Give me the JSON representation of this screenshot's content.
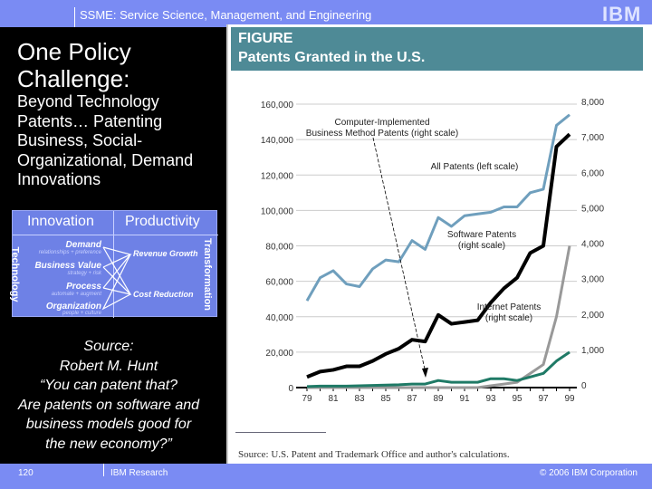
{
  "header": {
    "title": "SSME: Service Science, Management, and Engineering",
    "logo": "IBM"
  },
  "left": {
    "title": "One Policy Challenge:",
    "subtitle": "Beyond Technology Patents… Patenting Business, Social-Organizational, Demand Innovations",
    "diagram": {
      "col1": "Innovation",
      "col2": "Productivity",
      "side_left": "Technology",
      "side_right": "Transformation",
      "items": [
        {
          "label": "Demand",
          "sub": "relationships + preference"
        },
        {
          "label": "Business Value",
          "sub": "strategy + risk"
        },
        {
          "label": "Process",
          "sub": "automate + augment"
        },
        {
          "label": "Organization",
          "sub": "people + culture"
        }
      ],
      "outcomes": [
        "Revenue Growth",
        "Cost Reduction"
      ]
    },
    "source": [
      "Source:",
      "Robert M. Hunt",
      "“You can patent that?",
      "Are patents on software and",
      "business models good for",
      "the new economy?”"
    ]
  },
  "figure": {
    "label": "FIGURE",
    "title": "Patents Granted in the U.S.",
    "source": "Source: U.S. Patent and Trademark Office and author's calculations."
  },
  "chart_data": {
    "type": "line",
    "title": "Patents Granted in the U.S.",
    "x": [
      "79",
      "80",
      "81",
      "82",
      "83",
      "84",
      "85",
      "86",
      "87",
      "88",
      "89",
      "90",
      "91",
      "92",
      "93",
      "94",
      "95",
      "96",
      "97",
      "98",
      "99"
    ],
    "xticklabels": [
      "79",
      "81",
      "83",
      "85",
      "87",
      "89",
      "91",
      "93",
      "95",
      "97",
      "99"
    ],
    "left_axis": {
      "ylim": [
        0,
        160000
      ],
      "ticks": [
        "0",
        "20,000",
        "40,000",
        "60,000",
        "80,000",
        "100,000",
        "120,000",
        "140,000",
        "160,000"
      ]
    },
    "right_axis": {
      "ylim": [
        0,
        8000
      ],
      "ticks": [
        "0",
        "1,000",
        "2,000",
        "3,000",
        "4,000",
        "5,000",
        "6,000",
        "7,000",
        "8,000"
      ]
    },
    "grid": true,
    "series": [
      {
        "name": "All Patents (left scale)",
        "axis": "left",
        "color": "#6f9fbd",
        "values": [
          49000,
          62000,
          66000,
          58500,
          57000,
          67000,
          72000,
          71000,
          83000,
          78000,
          96000,
          91000,
          97000,
          98000,
          99000,
          102000,
          102000,
          110000,
          112000,
          148000,
          154000
        ]
      },
      {
        "name": "Software Patents (right scale)",
        "axis": "right",
        "color": "#000000",
        "values": [
          300,
          450,
          500,
          600,
          600,
          750,
          950,
          1100,
          1350,
          1300,
          2050,
          1800,
          1850,
          1900,
          2400,
          2800,
          3100,
          3800,
          4000,
          6800,
          7150
        ]
      },
      {
        "name": "Internet Patents (right scale)",
        "axis": "right",
        "color": "#999999",
        "values": [
          0,
          0,
          0,
          0,
          0,
          0,
          0,
          0,
          0,
          0,
          0,
          0,
          0,
          0,
          50,
          100,
          150,
          400,
          650,
          2000,
          4000
        ]
      },
      {
        "name": "Computer-Implemented Business Method Patents (right scale)",
        "axis": "right",
        "color": "#1f7a66",
        "values": [
          30,
          40,
          40,
          40,
          50,
          60,
          70,
          80,
          100,
          100,
          200,
          150,
          150,
          150,
          250,
          250,
          200,
          300,
          400,
          750,
          1000
        ]
      }
    ],
    "annotations": [
      {
        "text": [
          "Computer-Implemented",
          "Business Method Patents (right scale)"
        ]
      },
      {
        "text": [
          "All Patents (left scale)"
        ]
      },
      {
        "text": [
          "Software Patents",
          "(right scale)"
        ]
      },
      {
        "text": [
          "Internet Patents",
          "(right scale)"
        ]
      }
    ]
  },
  "footer": {
    "page": "120",
    "org": "IBM Research",
    "copyright": "© 2006 IBM Corporation"
  }
}
